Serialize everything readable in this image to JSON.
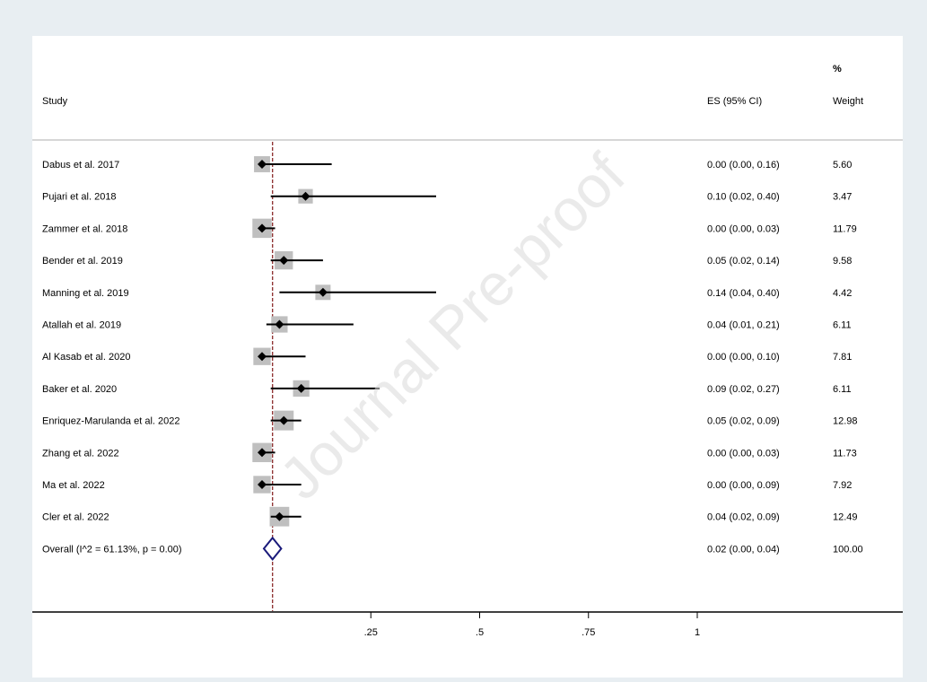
{
  "watermark": "Journal Pre-proof",
  "colors": {
    "page_bg": "#e8eef2",
    "panel_bg": "#ffffff",
    "box": "#bfbfbf",
    "ci_line": "#000000",
    "ref_line": "#8b2a2a",
    "diamond": "#1a1a7a",
    "watermark": "#d9d9d9"
  },
  "headers": {
    "study": "Study",
    "es": "ES (95% CI)",
    "weight_pct": "%",
    "weight": "Weight"
  },
  "chart_data": {
    "type": "forest",
    "title": "",
    "xlabel": "",
    "ylabel": "",
    "x_ticks": [
      0.25,
      0.5,
      0.75,
      1
    ],
    "x_tick_labels": [
      ".25",
      ".5",
      ".75",
      "1"
    ],
    "x_range": [
      -0.03,
      1.0
    ],
    "reference_line": 0.02,
    "studies": [
      {
        "label": "Dabus et al. 2017",
        "es": 0.0,
        "lo": 0.0,
        "hi": 0.16,
        "es_text": "0.00 (0.00, 0.16)",
        "weight": 5.6,
        "weight_text": "5.60"
      },
      {
        "label": "Pujari et al. 2018",
        "es": 0.1,
        "lo": 0.02,
        "hi": 0.4,
        "es_text": "0.10 (0.02, 0.40)",
        "weight": 3.47,
        "weight_text": "3.47"
      },
      {
        "label": "Zammer et al. 2018",
        "es": 0.0,
        "lo": 0.0,
        "hi": 0.03,
        "es_text": "0.00 (0.00, 0.03)",
        "weight": 11.79,
        "weight_text": "11.79"
      },
      {
        "label": "Bender et al. 2019",
        "es": 0.05,
        "lo": 0.02,
        "hi": 0.14,
        "es_text": "0.05 (0.02, 0.14)",
        "weight": 9.58,
        "weight_text": "9.58"
      },
      {
        "label": "Manning et al. 2019",
        "es": 0.14,
        "lo": 0.04,
        "hi": 0.4,
        "es_text": "0.14 (0.04, 0.40)",
        "weight": 4.42,
        "weight_text": "4.42"
      },
      {
        "label": "Atallah et al. 2019",
        "es": 0.04,
        "lo": 0.01,
        "hi": 0.21,
        "es_text": "0.04 (0.01, 0.21)",
        "weight": 6.11,
        "weight_text": "6.11"
      },
      {
        "label": "Al Kasab et al. 2020",
        "es": 0.0,
        "lo": 0.0,
        "hi": 0.1,
        "es_text": "0.00 (0.00, 0.10)",
        "weight": 7.81,
        "weight_text": "7.81"
      },
      {
        "label": "Baker et al. 2020",
        "es": 0.09,
        "lo": 0.02,
        "hi": 0.27,
        "es_text": "0.09 (0.02, 0.27)",
        "weight": 6.11,
        "weight_text": "6.11"
      },
      {
        "label": "Enriquez-Marulanda et al. 2022",
        "es": 0.05,
        "lo": 0.02,
        "hi": 0.09,
        "es_text": "0.05 (0.02, 0.09)",
        "weight": 12.98,
        "weight_text": "12.98"
      },
      {
        "label": "Zhang et al. 2022",
        "es": 0.0,
        "lo": 0.0,
        "hi": 0.03,
        "es_text": "0.00 (0.00, 0.03)",
        "weight": 11.73,
        "weight_text": "11.73"
      },
      {
        "label": "Ma et al. 2022",
        "es": 0.0,
        "lo": 0.0,
        "hi": 0.09,
        "es_text": "0.00 (0.00, 0.09)",
        "weight": 7.92,
        "weight_text": "7.92"
      },
      {
        "label": "Cler et al. 2022",
        "es": 0.04,
        "lo": 0.02,
        "hi": 0.09,
        "es_text": "0.04 (0.02, 0.09)",
        "weight": 12.49,
        "weight_text": "12.49"
      }
    ],
    "overall": {
      "label": "Overall  (I^2 = 61.13%, p = 0.00)",
      "es": 0.02,
      "lo": 0.0,
      "hi": 0.04,
      "es_text": "0.02 (0.00, 0.04)",
      "weight_text": "100.00"
    }
  }
}
